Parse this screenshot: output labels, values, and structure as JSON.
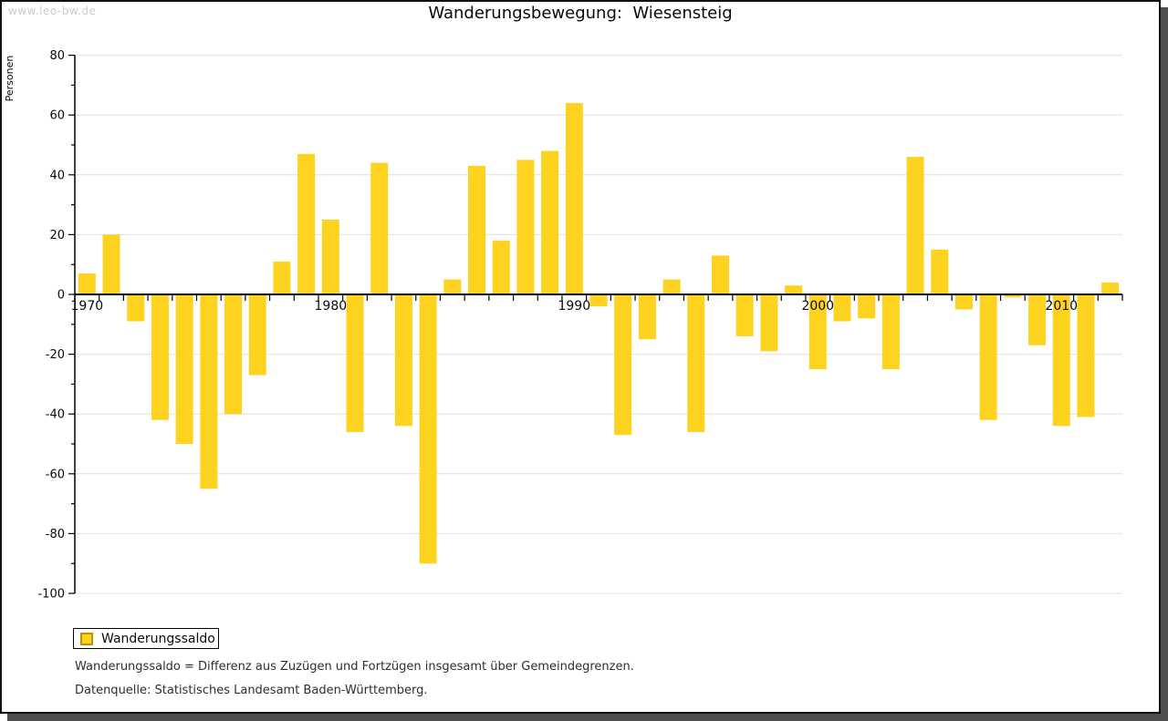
{
  "window": {
    "watermark": "www.leo-bw.de"
  },
  "title": "Wanderungsbewegung:  Wiesensteig",
  "chart_data": {
    "type": "bar",
    "title": "Wanderungsbewegung: Wiesensteig",
    "xlabel": "",
    "ylabel": "Personen",
    "ylim": [
      -100,
      80
    ],
    "ytick_major_step": 20,
    "ytick_minor_step": 10,
    "grid": true,
    "legend_position": "bottom-left",
    "bar_color": "#fdd320",
    "grid_color": "#e0e0e0",
    "axis_color": "#000000",
    "categories": [
      1970,
      1971,
      1972,
      1973,
      1974,
      1975,
      1976,
      1977,
      1978,
      1979,
      1980,
      1981,
      1982,
      1983,
      1984,
      1985,
      1986,
      1987,
      1988,
      1989,
      1990,
      1991,
      1992,
      1993,
      1994,
      1995,
      1996,
      1997,
      1998,
      1999,
      2000,
      2001,
      2002,
      2003,
      2004,
      2005,
      2006,
      2007,
      2008,
      2009,
      2010,
      2011,
      2012
    ],
    "x_tick_labels": [
      "1970",
      "1980",
      "1990",
      "2000",
      "2010"
    ],
    "series": [
      {
        "name": "Wanderungssaldo",
        "values": [
          7,
          20,
          -9,
          -42,
          -50,
          -65,
          -40,
          -27,
          11,
          47,
          25,
          -46,
          44,
          -44,
          -90,
          5,
          43,
          18,
          45,
          48,
          64,
          -4,
          -47,
          -15,
          5,
          -46,
          13,
          -14,
          -19,
          3,
          -25,
          -9,
          -8,
          -25,
          46,
          15,
          -5,
          -42,
          -1,
          -17,
          -44,
          -41,
          4
        ]
      }
    ]
  },
  "legend": {
    "label": "Wanderungssaldo",
    "swatch_color": "#fdd320",
    "swatch_border_color": "#b8960b"
  },
  "footnotes": [
    "Wanderungssaldo = Differenz aus Zuzügen und Fortzügen insgesamt über Gemeindegrenzen.",
    "Datenquelle: Statistisches Landesamt Baden-Württemberg."
  ]
}
